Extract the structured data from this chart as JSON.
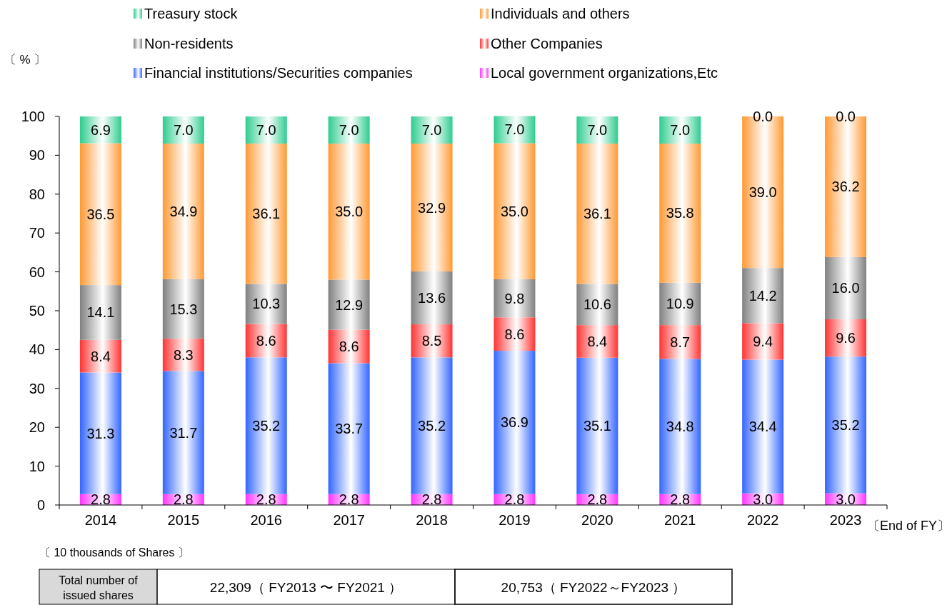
{
  "chart_data": {
    "type": "bar",
    "stacked": true,
    "legend": "top",
    "xlabel": "〔End of FY〕",
    "ylabel": "〔 % 〕",
    "categories": [
      "2014",
      "2015",
      "2016",
      "2017",
      "2018",
      "2019",
      "2020",
      "2021",
      "2022",
      "2023"
    ],
    "ylim": [
      0,
      100
    ],
    "yticks": [
      0,
      10,
      20,
      30,
      40,
      50,
      60,
      70,
      80,
      90,
      100
    ],
    "series": [
      {
        "name": "Local government organizations,Etc",
        "color": "#ff33ff",
        "values": [
          2.8,
          2.8,
          2.8,
          2.8,
          2.8,
          2.8,
          2.8,
          2.8,
          3.0,
          3.0
        ],
        "value_labels": [
          "2.8",
          "2.8",
          "2.8",
          "2.8",
          "2.8",
          "2.8",
          "2.8",
          "2.8",
          "3.0",
          "3.0"
        ]
      },
      {
        "name": "Financial institutions/Securities companies",
        "color": "#3366ff",
        "values": [
          31.3,
          31.7,
          35.2,
          33.7,
          35.2,
          36.9,
          35.1,
          34.8,
          34.4,
          35.2
        ],
        "value_labels": [
          "31.3",
          "31.7",
          "35.2",
          "33.7",
          "35.2",
          "36.9",
          "35.1",
          "34.8",
          "34.4",
          "35.2"
        ]
      },
      {
        "name": "Other Companies",
        "color": "#ff3333",
        "values": [
          8.4,
          8.3,
          8.6,
          8.6,
          8.5,
          8.6,
          8.4,
          8.7,
          9.4,
          9.6
        ],
        "value_labels": [
          "8.4",
          "8.3",
          "8.6",
          "8.6",
          "8.5",
          "8.6",
          "8.4",
          "8.7",
          "9.4",
          "9.6"
        ]
      },
      {
        "name": "Non-residents",
        "color": "#808080",
        "values": [
          14.1,
          15.3,
          10.3,
          12.9,
          13.6,
          9.8,
          10.6,
          10.9,
          14.2,
          16.0
        ],
        "value_labels": [
          "14.1",
          "15.3",
          "10.3",
          "12.9",
          "13.6",
          "9.8",
          "10.6",
          "10.9",
          "14.2",
          "16.0"
        ]
      },
      {
        "name": "Individuals and others",
        "color": "#ff9933",
        "values": [
          36.5,
          34.9,
          36.1,
          35.0,
          32.9,
          35.0,
          36.1,
          35.8,
          39.0,
          36.2
        ],
        "value_labels": [
          "36.5",
          "34.9",
          "36.1",
          "35.0",
          "32.9",
          "35.0",
          "36.1",
          "35.8",
          "39.0",
          "36.2"
        ]
      },
      {
        "name": "Treasury stock",
        "color": "#2ecc8f",
        "values": [
          6.9,
          7.0,
          7.0,
          7.0,
          7.0,
          7.0,
          7.0,
          7.0,
          0.0,
          0.0
        ],
        "value_labels": [
          "6.9",
          "7.0",
          "7.0",
          "7.0",
          "7.0",
          "7.0",
          "7.0",
          "7.0",
          "0.0",
          "0.0"
        ]
      }
    ],
    "annotations": [
      "〔 10 thousands of Shares 〕",
      "Total number of issued shares",
      "22,309（ FY2013 〜 FY2021 ）",
      "20,753（ FY2022～FY2023 ）"
    ]
  }
}
